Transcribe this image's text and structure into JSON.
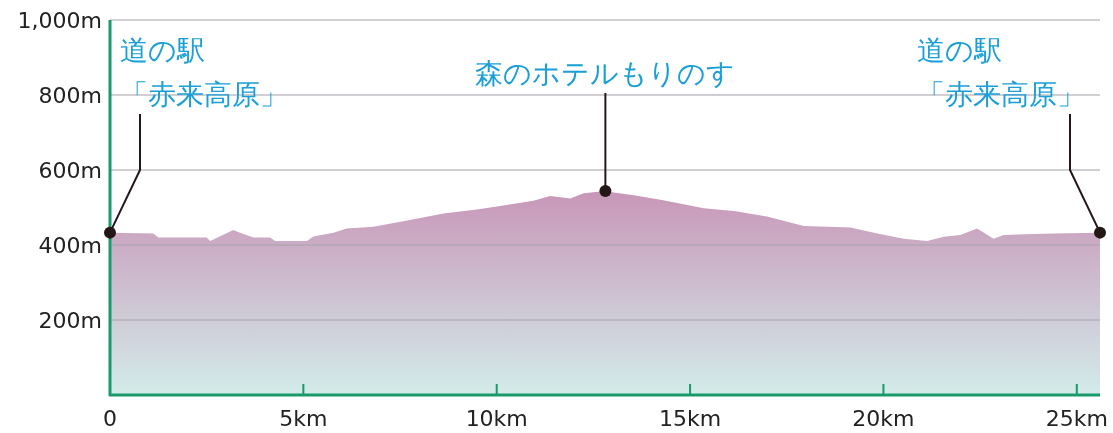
{
  "chart_data": {
    "type": "area",
    "color": "#c896b8",
    "x": [
      0,
      1.12,
      1.25,
      2.5,
      2.59,
      3.19,
      3.36,
      3.71,
      4.14,
      4.27,
      4.57,
      5.09,
      5.26,
      5.78,
      6.12,
      6.81,
      7.76,
      8.62,
      9.49,
      10.26,
      10.95,
      11.38,
      11.9,
      12.25,
      12.81,
      13.02,
      13.54,
      14.27,
      14.83,
      15.35,
      16.13,
      16.99,
      17.94,
      19.15,
      19.84,
      20.53,
      21.13,
      21.56,
      21.99,
      22.42,
      22.85,
      23.11,
      24.41,
      25.6
    ],
    "values": [
      433,
      431,
      420,
      420,
      411,
      440,
      433,
      420,
      420,
      411,
      411,
      411,
      423,
      433,
      444,
      449,
      467,
      484,
      495,
      507,
      518,
      531,
      524,
      538,
      544,
      540,
      533,
      520,
      509,
      498,
      491,
      476,
      451,
      447,
      431,
      417,
      411,
      422,
      427,
      444,
      417,
      427,
      431,
      433
    ],
    "xlim": [
      0,
      25.6
    ],
    "ylim": [
      0,
      1000
    ],
    "xticks": [
      0,
      {
        "value": 5,
        "label": "5km"
      },
      {
        "value": 10,
        "label": "10km"
      },
      {
        "value": 15,
        "label": "15km"
      },
      {
        "value": 20,
        "label": "20km"
      },
      {
        "value": 25,
        "label": "25km"
      }
    ],
    "yticks": [
      {
        "value": 200,
        "label": "200m"
      },
      {
        "value": 400,
        "label": "400m"
      },
      {
        "value": 600,
        "label": "600m"
      },
      {
        "value": 800,
        "label": "800m"
      },
      {
        "value": 1000,
        "label": "1,000m"
      }
    ],
    "grid": "y",
    "annotations": [
      {
        "text": "道の駅「赤来高原」",
        "x": 0,
        "y": 433
      },
      {
        "text": "森のホテルもりのす",
        "x": 12.81,
        "y": 544
      },
      {
        "text": "道の駅「赤来高原」",
        "x": 25.6,
        "y": 433
      }
    ]
  }
}
